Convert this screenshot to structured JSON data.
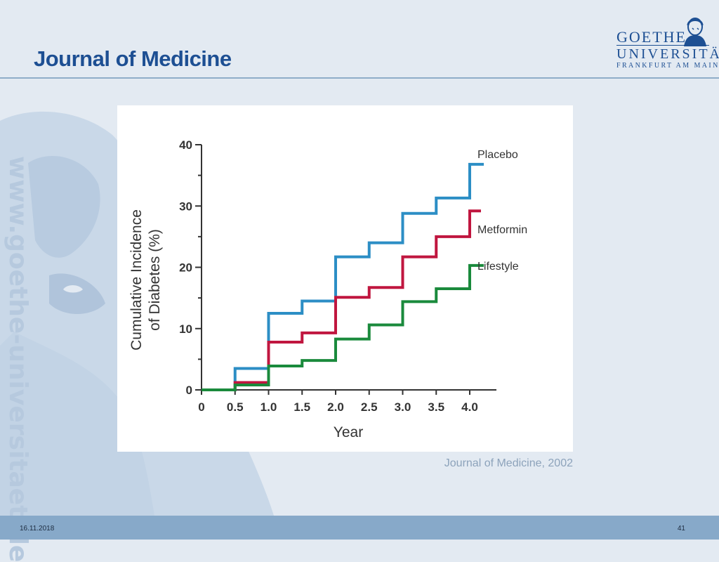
{
  "slide": {
    "title": "Journal of Medicine",
    "side_url": "www.goethe-universitaet.de",
    "source": "Journal of Medicine, 2002",
    "footer_date": "16.11.2018",
    "page_number": "41"
  },
  "logo": {
    "line1": "GOETHE",
    "line2": "UNIVERSITÄT",
    "line3": "FRANKFURT AM MAIN"
  },
  "colors": {
    "brand": "#1d4f93",
    "footer": "#87a9c9",
    "background": "#e3eaf2",
    "placebo": "#2c8ec5",
    "metformin": "#c0163f",
    "lifestyle": "#1a8a3c"
  },
  "chart_data": {
    "type": "line",
    "step": true,
    "xlabel": "Year",
    "ylabel_lines": [
      "Cumulative Incidence",
      "of Diabetes (%)"
    ],
    "xlim": [
      0,
      4.0
    ],
    "ylim": [
      0,
      40
    ],
    "x_ticks": [
      "0",
      "0.5",
      "1.0",
      "1.5",
      "2.0",
      "2.5",
      "3.0",
      "3.5",
      "4.0"
    ],
    "y_ticks": [
      "0",
      "10",
      "20",
      "30",
      "40"
    ],
    "legend": "right-end-labels",
    "series": [
      {
        "name": "Placebo",
        "color": "#2c8ec5",
        "x": [
          0,
          0.5,
          1.0,
          1.5,
          2.0,
          2.5,
          3.0,
          3.5,
          4.0
        ],
        "y": [
          0,
          3.5,
          12.5,
          14.5,
          21.7,
          24.0,
          28.8,
          31.3,
          36.8
        ]
      },
      {
        "name": "Metformin",
        "color": "#c0163f",
        "x": [
          0,
          0.5,
          1.0,
          1.5,
          2.0,
          2.5,
          3.0,
          3.5,
          4.0
        ],
        "y": [
          0,
          1.2,
          7.8,
          9.3,
          15.1,
          16.7,
          21.7,
          25.0,
          29.2
        ]
      },
      {
        "name": "Lifestyle",
        "color": "#1a8a3c",
        "x": [
          0,
          0.5,
          1.0,
          1.5,
          2.0,
          2.5,
          3.0,
          3.5,
          4.0
        ],
        "y": [
          0,
          0.8,
          3.9,
          4.8,
          8.3,
          10.6,
          14.4,
          16.5,
          20.3
        ]
      }
    ]
  }
}
